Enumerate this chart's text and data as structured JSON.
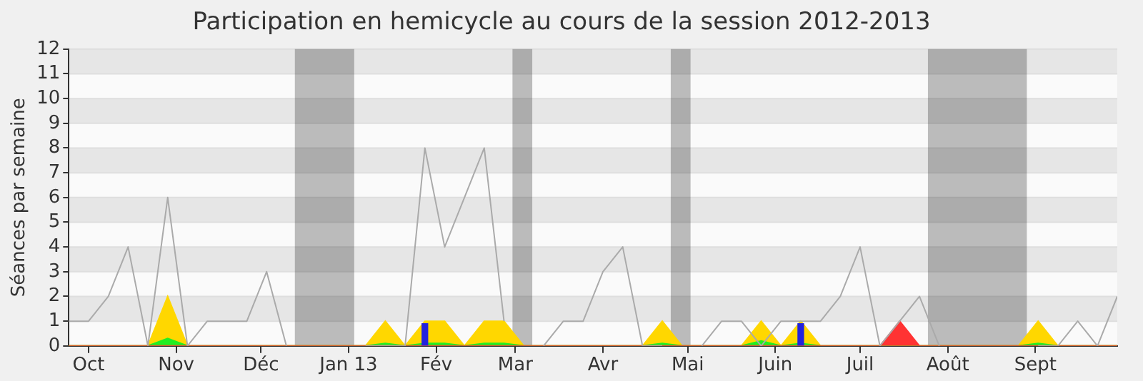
{
  "chart_data": {
    "type": "line",
    "title": "Participation en hemicycle au cours de la session 2012-2013",
    "ylabel": "Séances par semaine",
    "x": [
      "2012-09-24",
      "2012-10-01",
      "2012-10-08",
      "2012-10-15",
      "2012-10-22",
      "2012-10-29",
      "2012-11-05",
      "2012-11-12",
      "2012-11-19",
      "2012-11-26",
      "2012-12-03",
      "2012-12-10",
      "2012-12-17",
      "2012-12-24",
      "2012-12-31",
      "2013-01-07",
      "2013-01-14",
      "2013-01-21",
      "2013-01-28",
      "2013-02-04",
      "2013-02-11",
      "2013-02-18",
      "2013-02-25",
      "2013-03-04",
      "2013-03-11",
      "2013-03-18",
      "2013-03-25",
      "2013-04-01",
      "2013-04-08",
      "2013-04-15",
      "2013-04-22",
      "2013-04-29",
      "2013-05-06",
      "2013-05-13",
      "2013-05-20",
      "2013-05-27",
      "2013-06-03",
      "2013-06-10",
      "2013-06-17",
      "2013-06-24",
      "2013-07-01",
      "2013-07-08",
      "2013-07-15",
      "2013-07-22",
      "2013-07-29",
      "2013-08-05",
      "2013-08-12",
      "2013-08-19",
      "2013-08-26",
      "2013-09-02",
      "2013-09-09",
      "2013-09-16",
      "2013-09-23",
      "2013-09-30"
    ],
    "xlim": [
      "2012-09-24",
      "2013-09-30"
    ],
    "xticks": [
      {
        "value": "2012-10-01",
        "label": "Oct"
      },
      {
        "value": "2012-11-01",
        "label": "Nov"
      },
      {
        "value": "2012-12-01",
        "label": "Déc"
      },
      {
        "value": "2013-01-01",
        "label": "Jan 13"
      },
      {
        "value": "2013-02-01",
        "label": "Fév"
      },
      {
        "value": "2013-03-01",
        "label": "Mar"
      },
      {
        "value": "2013-04-01",
        "label": "Avr"
      },
      {
        "value": "2013-05-01",
        "label": "Mai"
      },
      {
        "value": "2013-06-01",
        "label": "Juin"
      },
      {
        "value": "2013-07-01",
        "label": "Juil"
      },
      {
        "value": "2013-08-01",
        "label": "Août"
      },
      {
        "value": "2013-09-01",
        "label": "Sept"
      }
    ],
    "ylim": [
      0,
      12
    ],
    "yticks": [
      0,
      1,
      2,
      3,
      4,
      5,
      6,
      7,
      8,
      9,
      10,
      11,
      12
    ],
    "grid": "y",
    "legend": false,
    "marker": "none",
    "bands": [
      {
        "axis": "x",
        "from": "2012-12-13",
        "to": "2013-01-03"
      },
      {
        "axis": "x",
        "from": "2013-02-28",
        "to": "2013-03-07"
      },
      {
        "axis": "x",
        "from": "2013-04-25",
        "to": "2013-05-02"
      },
      {
        "axis": "x",
        "from": "2013-07-25",
        "to": "2013-08-29"
      }
    ],
    "series": [
      {
        "type": "area",
        "color": "#ffd700",
        "values": [
          0,
          0,
          0,
          0,
          0,
          2,
          0,
          0,
          0,
          0,
          0,
          0,
          0,
          0,
          0,
          0,
          1,
          0,
          1,
          1,
          0,
          1,
          1,
          0,
          0,
          0,
          0,
          0,
          0,
          0,
          1,
          0,
          0,
          0,
          0,
          1,
          0,
          1,
          0,
          0,
          0,
          0,
          0,
          0,
          0,
          0,
          0,
          0,
          0,
          1,
          0,
          0,
          0,
          0
        ]
      },
      {
        "type": "area",
        "color": "#22ee22",
        "values": [
          0,
          0,
          0,
          0,
          0,
          0.3,
          0,
          0,
          0,
          0,
          0,
          0,
          0,
          0,
          0,
          0,
          0.1,
          0,
          0.1,
          0.1,
          0,
          0.1,
          0.1,
          0,
          0,
          0,
          0,
          0,
          0,
          0,
          0.1,
          0,
          0,
          0,
          0,
          0.2,
          0,
          0.1,
          0,
          0,
          0,
          0,
          0,
          0,
          0,
          0,
          0,
          0,
          0,
          0.1,
          0,
          0,
          0,
          0
        ]
      },
      {
        "type": "area",
        "color": "#ff3333",
        "values": [
          0,
          0,
          0,
          0,
          0,
          0,
          0,
          0,
          0,
          0,
          0,
          0,
          0,
          0,
          0,
          0,
          0,
          0,
          0,
          0,
          0,
          0,
          0,
          0,
          0,
          0,
          0,
          0,
          0,
          0,
          0,
          0,
          0,
          0,
          0,
          0,
          0,
          0,
          0,
          0,
          0,
          0,
          1,
          0,
          0,
          0,
          0,
          0,
          0,
          0,
          0,
          0,
          0,
          0
        ]
      },
      {
        "color": "#aaaaaa",
        "values": [
          1,
          1,
          2,
          4,
          0,
          6,
          0,
          1,
          1,
          1,
          3,
          0,
          null,
          null,
          null,
          0,
          0,
          0,
          8,
          4,
          6,
          8,
          1,
          null,
          0,
          1,
          1,
          3,
          4,
          0,
          0,
          null,
          0,
          1,
          1,
          0,
          1,
          1,
          1,
          2,
          4,
          0,
          1,
          2,
          0,
          null,
          null,
          null,
          null,
          0,
          0,
          1,
          0,
          2
        ]
      },
      {
        "type": "bar",
        "color": "#2222dd",
        "values": [
          null,
          null,
          null,
          null,
          null,
          null,
          null,
          null,
          null,
          null,
          null,
          null,
          null,
          null,
          null,
          null,
          null,
          null,
          0.9,
          null,
          null,
          null,
          null,
          null,
          null,
          null,
          null,
          null,
          null,
          null,
          null,
          null,
          null,
          null,
          null,
          null,
          null,
          0.9,
          null,
          null,
          null,
          null,
          null,
          null,
          null,
          null,
          null,
          null,
          null,
          null,
          null,
          null,
          null,
          null
        ]
      }
    ]
  }
}
